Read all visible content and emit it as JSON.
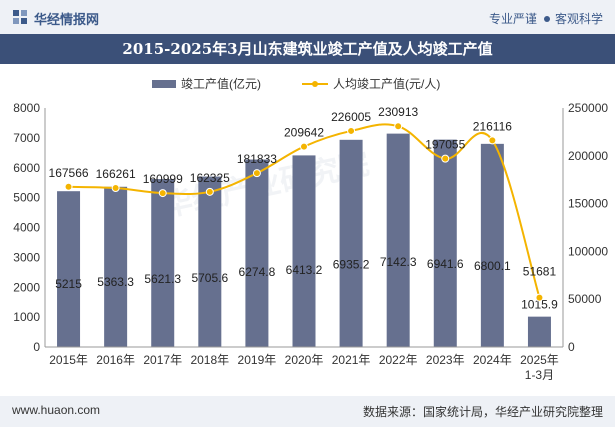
{
  "header": {
    "brand": "华经情报网",
    "tag_left": "专业严谨",
    "tag_right": "客观科学"
  },
  "footer": {
    "site": "www.huaon.com",
    "source": "数据来源：国家统计局，华经产业研究院整理"
  },
  "watermark": "华经产业研究院",
  "colors": {
    "bar": "#66708f",
    "line": "#f4b400",
    "title_bg": "#3b5078"
  },
  "chart_data": {
    "type": "bar",
    "title": "2015-2025年3月山东建筑业竣工产值及人均竣工产值",
    "categories": [
      "2015年",
      "2016年",
      "2017年",
      "2018年",
      "2019年",
      "2020年",
      "2021年",
      "2022年",
      "2023年",
      "2024年",
      "2025年 1-3月"
    ],
    "series": [
      {
        "name": "竣工产值(亿元)",
        "type": "bar",
        "axis": "left",
        "values": [
          5215,
          5363.3,
          5621.3,
          5705.6,
          6274.8,
          6413.2,
          6935.2,
          7142.3,
          6941.6,
          6800.1,
          1015.9
        ],
        "labels": [
          "5215",
          "5363.3",
          "5621.3",
          "5705.6",
          "6274.8",
          "6413.2",
          "6935.2",
          "7142.3",
          "6941.6",
          "6800.1",
          "1015.9"
        ]
      },
      {
        "name": "人均竣工产值(元/人)",
        "type": "line",
        "axis": "right",
        "values": [
          167566,
          166261,
          160999,
          162325,
          181833,
          209642,
          226005,
          230913,
          197055,
          216116,
          51681
        ],
        "labels": [
          "167566",
          "166261",
          "160999",
          "162325",
          "181833",
          "209642",
          "226005",
          "230913",
          "197055",
          "216116",
          "51681"
        ]
      }
    ],
    "y_left": {
      "min": 0,
      "max": 8000,
      "ticks": [
        "0",
        "1000",
        "2000",
        "3000",
        "4000",
        "5000",
        "6000",
        "7000",
        "8000"
      ]
    },
    "y_right": {
      "min": 0,
      "max": 250000,
      "ticks": [
        "0",
        "50000",
        "100000",
        "150000",
        "200000",
        "250000"
      ]
    },
    "legend_position": "top-center",
    "grid": false
  }
}
